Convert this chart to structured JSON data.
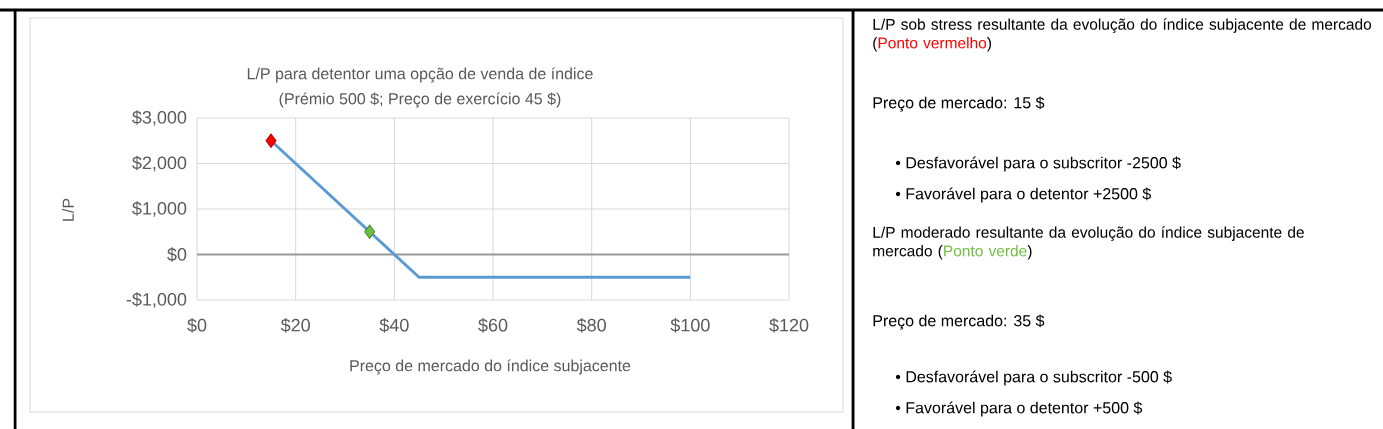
{
  "chart_data": {
    "type": "line",
    "title": "L/P para detentor uma opção de venda de índice",
    "subtitle": "(Prémio 500 $; Preço de exercício 45 $)",
    "xlabel": "Preço de mercado do índice subjacente",
    "ylabel": "L/P",
    "x": [
      15,
      45,
      100
    ],
    "series": [
      {
        "color": "#5b9bd5",
        "values": [
          2500,
          -500,
          -500
        ]
      },
      {
        "type": "scatter",
        "marker": "diamond",
        "color": "#ff0000",
        "x": [
          15
        ],
        "values": [
          2500
        ]
      },
      {
        "type": "scatter",
        "marker": "diamond",
        "color": "#70bf41",
        "x": [
          35
        ],
        "values": [
          500
        ]
      }
    ],
    "xlim": [
      0,
      120
    ],
    "xticks": [
      {
        "value": 0,
        "label": "$0"
      },
      {
        "value": 20,
        "label": "$20"
      },
      {
        "value": 40,
        "label": "$40"
      },
      {
        "value": 60,
        "label": "$60"
      },
      {
        "value": 80,
        "label": "$80"
      },
      {
        "value": 100,
        "label": "$100"
      },
      {
        "value": 120,
        "label": "$120"
      }
    ],
    "ylim": [
      -1000,
      3000
    ],
    "yticks": [
      {
        "value": -1000,
        "label": "-$1,000"
      },
      {
        "value": 0,
        "label": "$0"
      },
      {
        "value": 1000,
        "label": "$1,000"
      },
      {
        "value": 2000,
        "label": "$2,000"
      },
      {
        "value": 3000,
        "label": "$3,000"
      }
    ],
    "grid": true,
    "annotations": [
      "L/P sob stress resultante da evolução do índice subjacente de mercado (",
      "Ponto vermelho",
      ")",
      "Preço de mercado: 15 $",
      "• Desfavorável para o subscritor  -2500 $",
      "• Favorável para o detentor  +2500 $",
      "L/P moderado resultante da evolução do índice subjacente de mercado (",
      "Ponto verde",
      ")",
      "Preço de mercado: 35 $",
      "• Desfavorável para o subscritor  -500 $",
      "• Favorável para o detentor  +500 $"
    ]
  }
}
